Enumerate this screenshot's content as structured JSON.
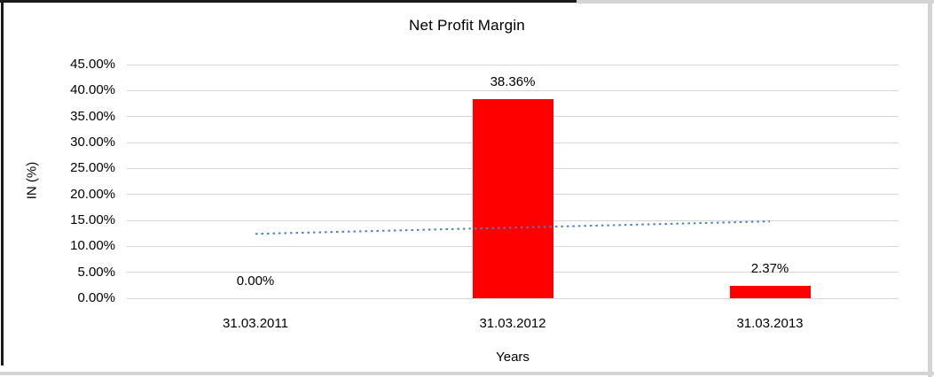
{
  "chart_data": {
    "type": "bar",
    "title": "Net Profit Margin",
    "xlabel": "Years",
    "ylabel": "IN (%)",
    "categories": [
      "31.03.2011",
      "31.03.2012",
      "31.03.2013"
    ],
    "values": [
      0.0,
      38.36,
      2.37
    ],
    "data_labels": [
      "0.00%",
      "38.36%",
      "2.37%"
    ],
    "ylim": [
      0,
      45
    ],
    "ytick_step": 5,
    "ytick_labels": [
      "45.00%",
      "40.00%",
      "35.00%",
      "30.00%",
      "25.00%",
      "20.00%",
      "15.00%",
      "10.00%",
      "5.00%",
      "0.00%"
    ],
    "gridlines": true,
    "legend_position": "none",
    "bar_color": "#ff0000",
    "gridline_color": "#d7d7d7",
    "trendline": {
      "style": "dotted",
      "color": "#4f81bd",
      "start_value": 12.4,
      "end_value": 14.8
    }
  }
}
